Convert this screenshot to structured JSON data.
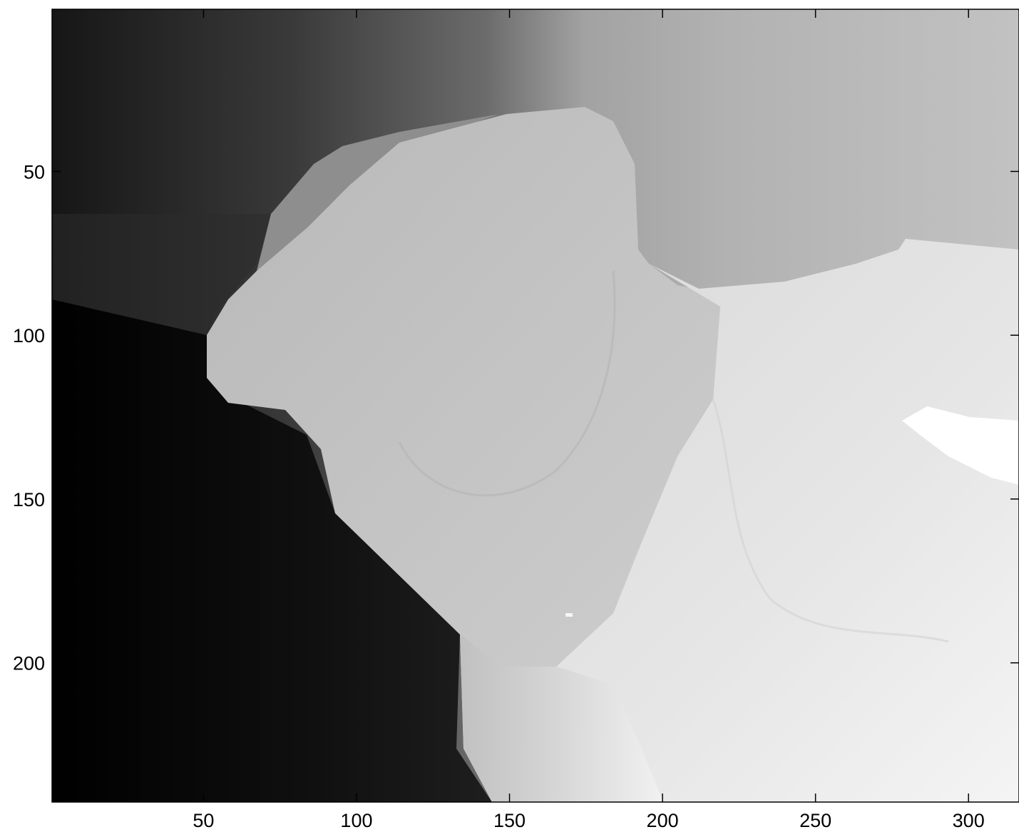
{
  "chart_data": {
    "type": "heatmap",
    "title": "",
    "xlabel": "",
    "ylabel": "",
    "colormap": "gray",
    "colors": {
      "low": "#000000",
      "high": "#ffffff",
      "axis": "#000000",
      "background": "#ffffff"
    },
    "image_size": {
      "columns": 316,
      "rows": 242
    },
    "xlim": [
      0.5,
      316.5
    ],
    "ylim": [
      0.5,
      242.5
    ],
    "y_direction": "reversed",
    "grid": false,
    "x_ticks": [
      50,
      100,
      150,
      200,
      250,
      300
    ],
    "y_ticks": [
      50,
      100,
      150,
      200
    ],
    "x_tick_labels": [
      "50",
      "100",
      "150",
      "200",
      "250",
      "300"
    ],
    "y_tick_labels": [
      "50",
      "100",
      "150",
      "200"
    ],
    "intensity_scale": [
      0,
      1
    ],
    "intensity_samples": {
      "description": "approximate grayscale intensity (0 = black, 1 = white) at column,row",
      "points": [
        {
          "x": 5,
          "y": 230,
          "value": 0.0
        },
        {
          "x": 20,
          "y": 20,
          "value": 0.2
        },
        {
          "x": 60,
          "y": 20,
          "value": 0.27
        },
        {
          "x": 120,
          "y": 20,
          "value": 0.45
        },
        {
          "x": 180,
          "y": 20,
          "value": 0.68
        },
        {
          "x": 300,
          "y": 40,
          "value": 0.76
        },
        {
          "x": 30,
          "y": 150,
          "value": 0.06
        },
        {
          "x": 100,
          "y": 200,
          "value": 0.09
        },
        {
          "x": 120,
          "y": 80,
          "value": 0.72
        },
        {
          "x": 180,
          "y": 60,
          "value": 0.76
        },
        {
          "x": 250,
          "y": 130,
          "value": 0.88
        },
        {
          "x": 300,
          "y": 128,
          "value": 1.0
        },
        {
          "x": 280,
          "y": 220,
          "value": 0.96
        },
        {
          "x": 168,
          "y": 183,
          "value": 0.97
        }
      ]
    }
  }
}
